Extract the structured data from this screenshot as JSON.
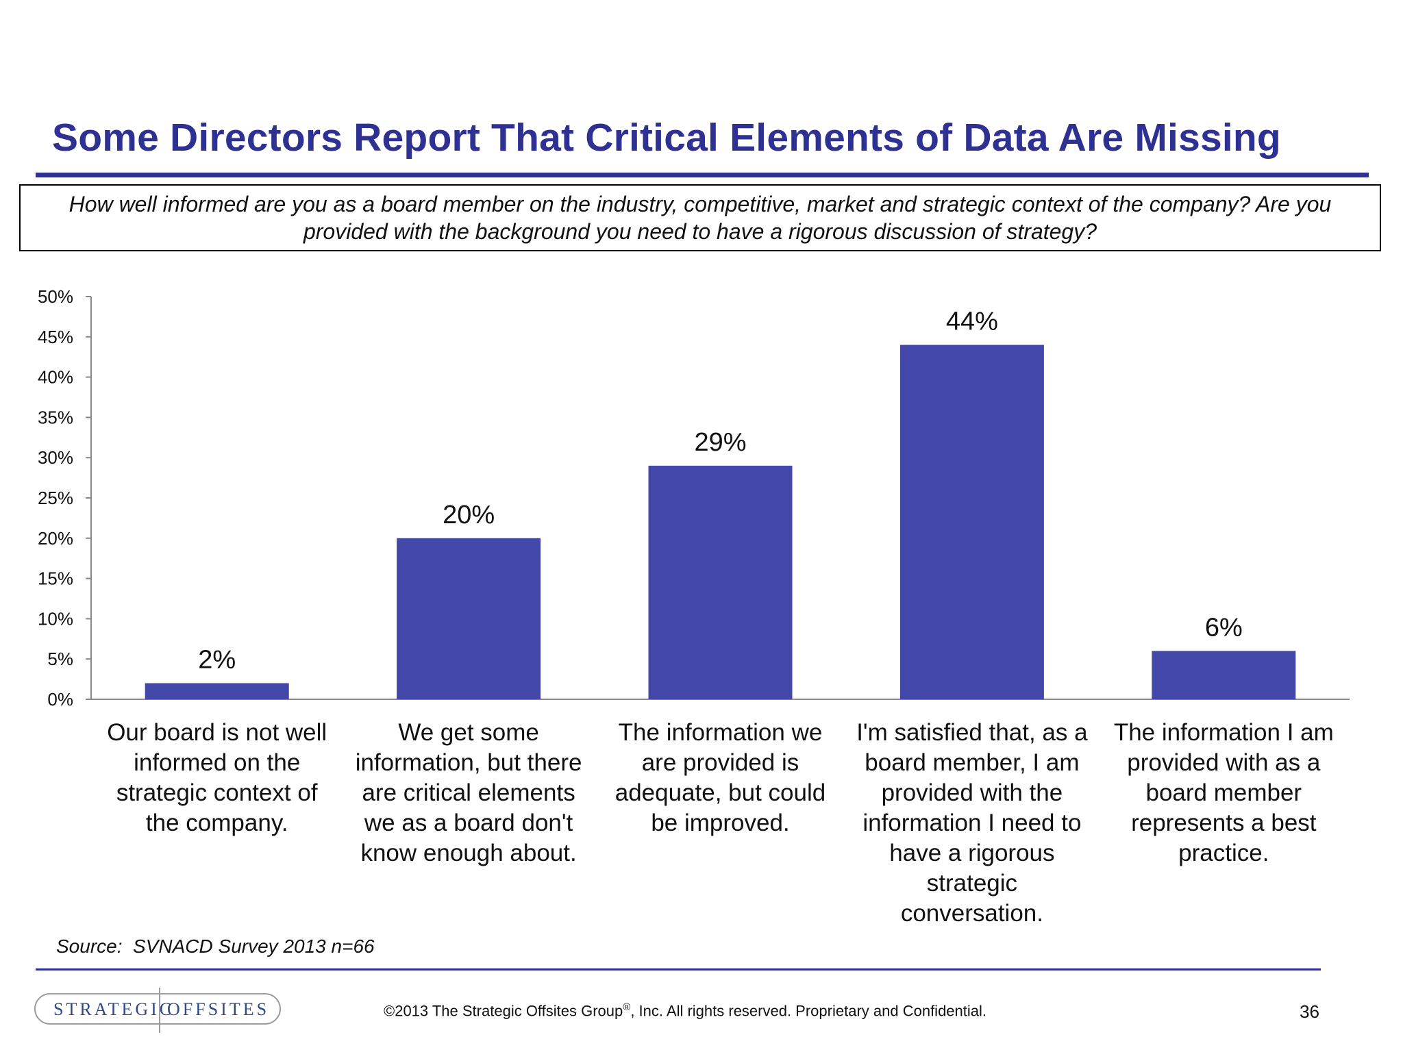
{
  "slide": {
    "title": "Some Directors Report That Critical Elements of Data Are Missing",
    "question": "How well informed are you as a board member on the industry, competitive, market and strategic context of the company? Are you provided with the background you need to have a rigorous discussion of strategy?",
    "source": "Source:  SVNACD Survey 2013 n=66",
    "page_number": "36"
  },
  "footer": {
    "logo_left": "STRATEGIC",
    "logo_right": "OFFSITES",
    "copyright_before": "©2013 The Strategic Offsites Group",
    "copyright_mark": "®",
    "copyright_after": ", Inc.  All rights reserved. Proprietary and Confidential."
  },
  "chart_data": {
    "type": "bar",
    "categories": [
      "Our board is not well informed on the strategic context of the company.",
      "We get some information, but there are critical elements we as a board don't know enough about.",
      "The information we are provided is adequate, but could be improved.",
      "I'm satisfied that, as a board member, I am provided with the information I need to have a rigorous strategic conversation.",
      "The information I am provided with as a board member represents a best practice."
    ],
    "category_lines": [
      [
        "Our board is not well",
        "informed on the",
        "strategic context of",
        "the company."
      ],
      [
        "We get some",
        "information, but there",
        "are critical elements",
        "we as a board don't",
        "know enough about."
      ],
      [
        "The information we",
        "are provided is",
        "adequate, but could",
        "be improved."
      ],
      [
        "I'm satisfied that, as a",
        "board member, I am",
        "provided with the",
        "information I need to",
        "have a rigorous",
        "strategic",
        "conversation."
      ],
      [
        "The information I am",
        "provided with as a",
        "board member",
        "represents a best",
        "practice."
      ]
    ],
    "values": [
      2,
      20,
      29,
      44,
      6
    ],
    "value_labels": [
      "2%",
      "20%",
      "29%",
      "44%",
      "6%"
    ],
    "ylim": [
      0,
      50
    ],
    "yticks": [
      0,
      5,
      10,
      15,
      20,
      25,
      30,
      35,
      40,
      45,
      50
    ],
    "ytick_labels": [
      "0%",
      "5%",
      "10%",
      "15%",
      "20%",
      "25%",
      "30%",
      "35%",
      "40%",
      "45%",
      "50%"
    ],
    "xlabel": "",
    "ylabel": "",
    "grid": false,
    "legend": "none",
    "bar_color": "#4348a8"
  }
}
